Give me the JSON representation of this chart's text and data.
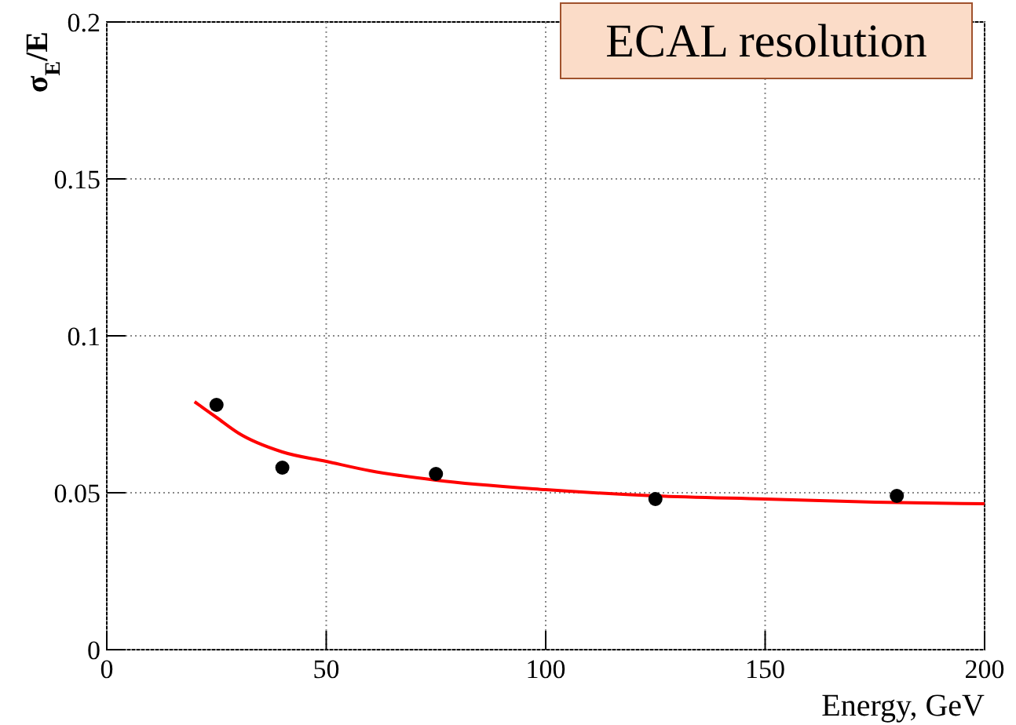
{
  "chart_data": {
    "type": "scatter",
    "title": "ECAL resolution",
    "xlabel": "Energy, GeV",
    "ylabel": "σ$_{E}$/E",
    "xlim": [
      0,
      200
    ],
    "ylim": [
      0,
      0.2
    ],
    "xticks": [
      0,
      50,
      100,
      150,
      200
    ],
    "yticks": [
      0,
      0.05,
      0.1,
      0.15,
      0.2
    ],
    "grid": true,
    "series": [
      {
        "marker": "circle",
        "color": "#000000",
        "x": [
          25,
          40,
          75,
          125,
          180
        ],
        "values": [
          0.078,
          0.058,
          0.056,
          0.048,
          0.049
        ]
      },
      {
        "type": "line",
        "color": "#ff0000",
        "line_style": "solid",
        "x": [
          20,
          25,
          30,
          40,
          50,
          60,
          75,
          100,
          125,
          150,
          175,
          200
        ],
        "values": [
          0.079,
          0.074,
          0.069,
          0.063,
          0.06,
          0.057,
          0.054,
          0.051,
          0.049,
          0.048,
          0.047,
          0.0465
        ]
      }
    ]
  }
}
